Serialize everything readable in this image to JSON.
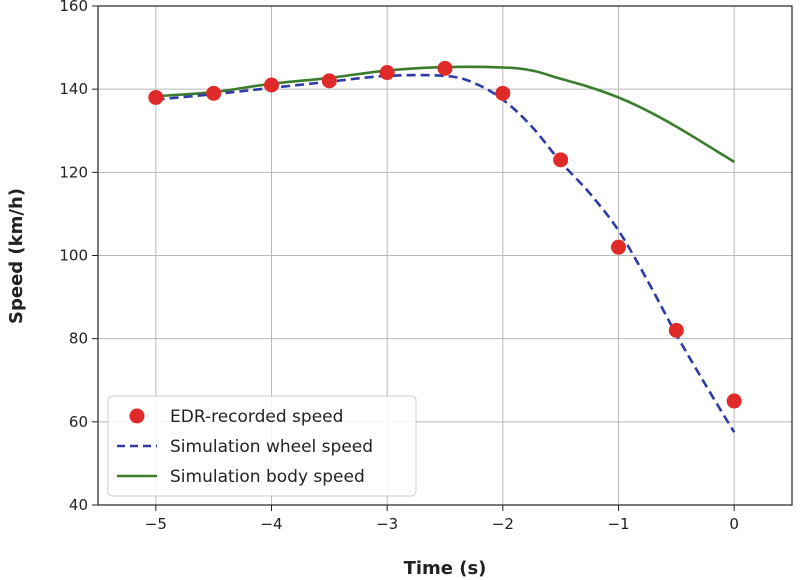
{
  "chart_data": {
    "type": "line",
    "title": "",
    "xlabel": "Time (s)",
    "ylabel": "Speed (km/h)",
    "xlim": [
      -5.5,
      0.5
    ],
    "ylim": [
      40,
      160
    ],
    "xticks": [
      -5,
      -4,
      -3,
      -2,
      -1,
      0
    ],
    "xtick_labels": [
      "−5",
      "−4",
      "−3",
      "−2",
      "−1",
      "0"
    ],
    "yticks": [
      40,
      60,
      80,
      100,
      120,
      140,
      160
    ],
    "ytick_labels": [
      "40",
      "60",
      "80",
      "100",
      "120",
      "140",
      "160"
    ],
    "grid": true,
    "legend_position": "lower-left",
    "series": [
      {
        "name": "EDR-recorded speed",
        "kind": "scatter",
        "color": "#e02a2a",
        "x": [
          -5,
          -4.5,
          -4,
          -3.5,
          -3,
          -2.5,
          -2,
          -1.5,
          -1,
          -0.5,
          0
        ],
        "y": [
          138,
          139,
          141,
          142,
          144,
          145,
          139,
          123,
          102,
          82,
          65
        ]
      },
      {
        "name": "Simulation wheel speed",
        "kind": "line",
        "style": "dashed",
        "color": "#2e3aa8",
        "x": [
          -5,
          -4.5,
          -4,
          -3.5,
          -3,
          -2.5,
          -2.25,
          -2,
          -1.75,
          -1.5,
          -1.25,
          -1,
          -0.75,
          -0.5,
          -0.25,
          0
        ],
        "y": [
          137.5,
          138.8,
          140.3,
          141.8,
          143.2,
          143.2,
          141.5,
          137.5,
          131,
          122.5,
          115,
          106,
          94,
          81,
          69,
          57.5
        ]
      },
      {
        "name": "Simulation body speed",
        "kind": "line",
        "style": "solid",
        "color": "#3a7d2c",
        "x": [
          -5,
          -4.5,
          -4,
          -3.5,
          -3,
          -2.5,
          -2,
          -1.75,
          -1.5,
          -1.25,
          -1,
          -0.75,
          -0.5,
          -0.25,
          0
        ],
        "y": [
          138.3,
          139.3,
          141.3,
          142.7,
          144.5,
          145.3,
          145.2,
          144.5,
          142.5,
          140.5,
          138,
          134.8,
          131,
          126.8,
          122.5
        ]
      }
    ]
  }
}
